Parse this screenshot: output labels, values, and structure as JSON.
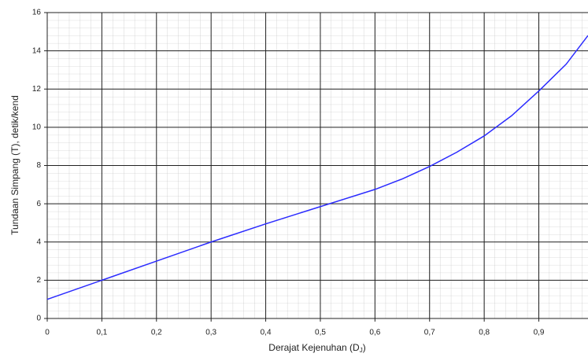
{
  "chart_data": {
    "type": "line",
    "x_label": {
      "text": "Derajat Kejenuhan (D",
      "subscript": "J",
      "suffix": ")"
    },
    "y_label": "Tundaan Simpang (T), detik/kend",
    "x": [
      0,
      0.1,
      0.2,
      0.3,
      0.4,
      0.5,
      0.6,
      0.65,
      0.7,
      0.75,
      0.8,
      0.85,
      0.9,
      0.95,
      0.99
    ],
    "series": [
      {
        "color": "#2b2bff",
        "values": [
          1,
          2,
          3,
          4,
          4.95,
          5.85,
          6.75,
          7.3,
          7.95,
          8.7,
          9.55,
          10.6,
          11.9,
          13.3,
          14.8
        ]
      }
    ],
    "xlim": [
      0,
      0.99
    ],
    "ylim": [
      0,
      16
    ],
    "xticks": [
      0,
      {
        "value": 0.1,
        "label": "0,1"
      },
      {
        "value": 0.2,
        "label": "0,2"
      },
      {
        "value": 0.3,
        "label": "0,3"
      },
      {
        "value": 0.4,
        "label": "0,4"
      },
      {
        "value": 0.5,
        "label": "0,5"
      },
      {
        "value": 0.6,
        "label": "0,6"
      },
      {
        "value": 0.7,
        "label": "0,7"
      },
      {
        "value": 0.8,
        "label": "0,8"
      },
      {
        "value": 0.9,
        "label": "0,9"
      }
    ],
    "yticks": [
      0,
      2,
      4,
      6,
      8,
      10,
      12,
      14,
      16
    ],
    "grid": true
  }
}
